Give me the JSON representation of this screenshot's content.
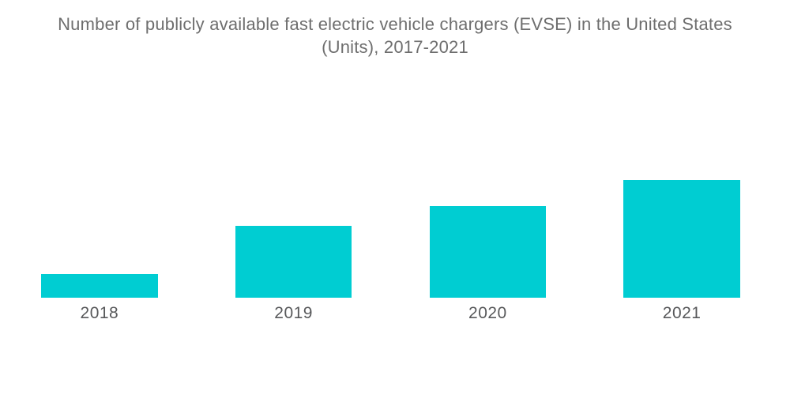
{
  "header": {
    "title_line1": "Number of publicly available fast electric vehicle chargers (EVSE) in the United States",
    "title_line2": "(Units), 2017-2021"
  },
  "chart_data": {
    "type": "bar",
    "title": "Number of publicly available fast electric vehicle chargers (EVSE) in the United States (Units), 2017-2021",
    "categories": [
      "2018",
      "2019",
      "2020",
      "2021"
    ],
    "values": [
      20,
      61,
      78,
      100
    ],
    "values_note": "No numeric y-axis, gridlines or data labels are shown in the image; values are relative bar heights with the tallest bar (2021) = 100",
    "xlabel": "",
    "ylabel": "",
    "ylim": [
      0,
      100
    ],
    "grid": false,
    "legend": false,
    "bar_color": "#00cdd2",
    "title_color": "#6e6e6e",
    "tick_label_color": "#58595b",
    "background_color": "#ffffff"
  }
}
